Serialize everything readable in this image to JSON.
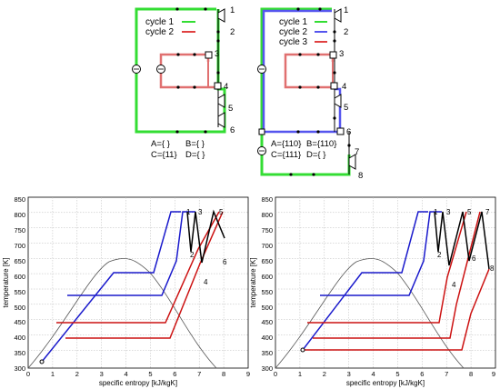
{
  "top_left": {
    "legend": [
      {
        "label": "cycle 1",
        "color": "#33dd33"
      },
      {
        "label": "cycle 2",
        "color": "#e04040"
      }
    ],
    "node_labels": [
      "1",
      "2",
      "3",
      "4",
      "5",
      "6"
    ],
    "sets": {
      "A": "A={ }",
      "B": "B={ }",
      "C": "C={11}",
      "D": "D={ }"
    }
  },
  "top_right": {
    "legend": [
      {
        "label": "cycle 1",
        "color": "#33dd33"
      },
      {
        "label": "cycle 2",
        "color": "#5555ee"
      },
      {
        "label": "cycle 3",
        "color": "#e04040"
      }
    ],
    "node_labels": [
      "1",
      "2",
      "3",
      "4",
      "5",
      "6",
      "7",
      "8"
    ],
    "sets": {
      "A": "A={110}",
      "B": "B={110}",
      "C": "C={111}",
      "D": "D={ }"
    }
  },
  "chart_data": [
    {
      "type": "line",
      "xlabel": "specific entropy [kJ/kgK]",
      "ylabel": "temperature [K]",
      "xlim": [
        0,
        9
      ],
      "ylim": [
        300,
        850
      ],
      "xticks": [
        "0",
        "1",
        "2",
        "3",
        "4",
        "5",
        "6",
        "7",
        "8",
        "9"
      ],
      "yticks": [
        "300",
        "350",
        "400",
        "450",
        "500",
        "550",
        "600",
        "650",
        "700",
        "750",
        "800",
        "850"
      ],
      "grid": true,
      "point_labels": [
        {
          "label": "1",
          "s": 6.7,
          "T": 800
        },
        {
          "label": "2",
          "s": 6.75,
          "T": 675
        },
        {
          "label": "3",
          "s": 7.3,
          "T": 800
        },
        {
          "label": "4",
          "s": 7.5,
          "T": 580
        },
        {
          "label": "5",
          "s": 8.0,
          "T": 800
        },
        {
          "label": "6",
          "s": 8.2,
          "T": 645
        }
      ]
    },
    {
      "type": "line",
      "xlabel": "specific entropy [kJ/kgK]",
      "ylabel": "temperature [K]",
      "xlim": [
        0,
        9
      ],
      "ylim": [
        300,
        850
      ],
      "xticks": [
        "0",
        "1",
        "2",
        "3",
        "4",
        "5",
        "6",
        "7",
        "8",
        "9"
      ],
      "yticks": [
        "300",
        "350",
        "400",
        "450",
        "500",
        "550",
        "600",
        "650",
        "700",
        "750",
        "800",
        "850"
      ],
      "grid": true,
      "point_labels": [
        {
          "label": "1",
          "s": 6.7,
          "T": 800
        },
        {
          "label": "2",
          "s": 6.75,
          "T": 675
        },
        {
          "label": "3",
          "s": 7.3,
          "T": 800
        },
        {
          "label": "4",
          "s": 7.5,
          "T": 570
        },
        {
          "label": "5",
          "s": 8.0,
          "T": 800
        },
        {
          "label": "6",
          "s": 8.2,
          "T": 650
        },
        {
          "label": "7",
          "s": 8.75,
          "T": 800
        },
        {
          "label": "8",
          "s": 8.9,
          "T": 625
        }
      ]
    }
  ]
}
